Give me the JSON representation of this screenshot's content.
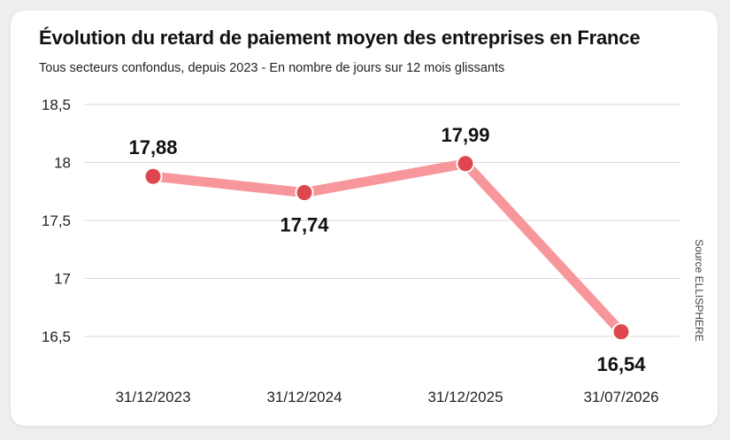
{
  "title": "Évolution du retard de paiement moyen des entreprises en France",
  "subtitle": "Tous secteurs confondus, depuis 2023 - En nombre de jours sur 12 mois glissants",
  "source": "Source ELLISPHERE",
  "colors": {
    "line": "#f7979c",
    "marker": "#e0464f",
    "grid": "#d9d9d9",
    "text": "#111111"
  },
  "chart_data": {
    "type": "line",
    "title": "Évolution du retard de paiement moyen des entreprises en France",
    "subtitle": "Tous secteurs confondus, depuis 2023 - En nombre de jours sur 12 mois glissants",
    "categories": [
      "31/12/2023",
      "31/12/2024",
      "31/12/2025",
      "31/07/2026"
    ],
    "values": [
      17.88,
      17.74,
      17.99,
      16.54
    ],
    "data_labels": [
      "17,88",
      "17,74",
      "17,99",
      "16,54"
    ],
    "y_ticks": [
      18.5,
      18,
      17.5,
      17,
      16.5
    ],
    "y_tick_labels": [
      "18,5",
      "18",
      "17,5",
      "17",
      "16,5"
    ],
    "ylim": [
      16.5,
      18.5
    ],
    "xlabel": "",
    "ylabel": "",
    "grid": true,
    "legend": "none"
  }
}
